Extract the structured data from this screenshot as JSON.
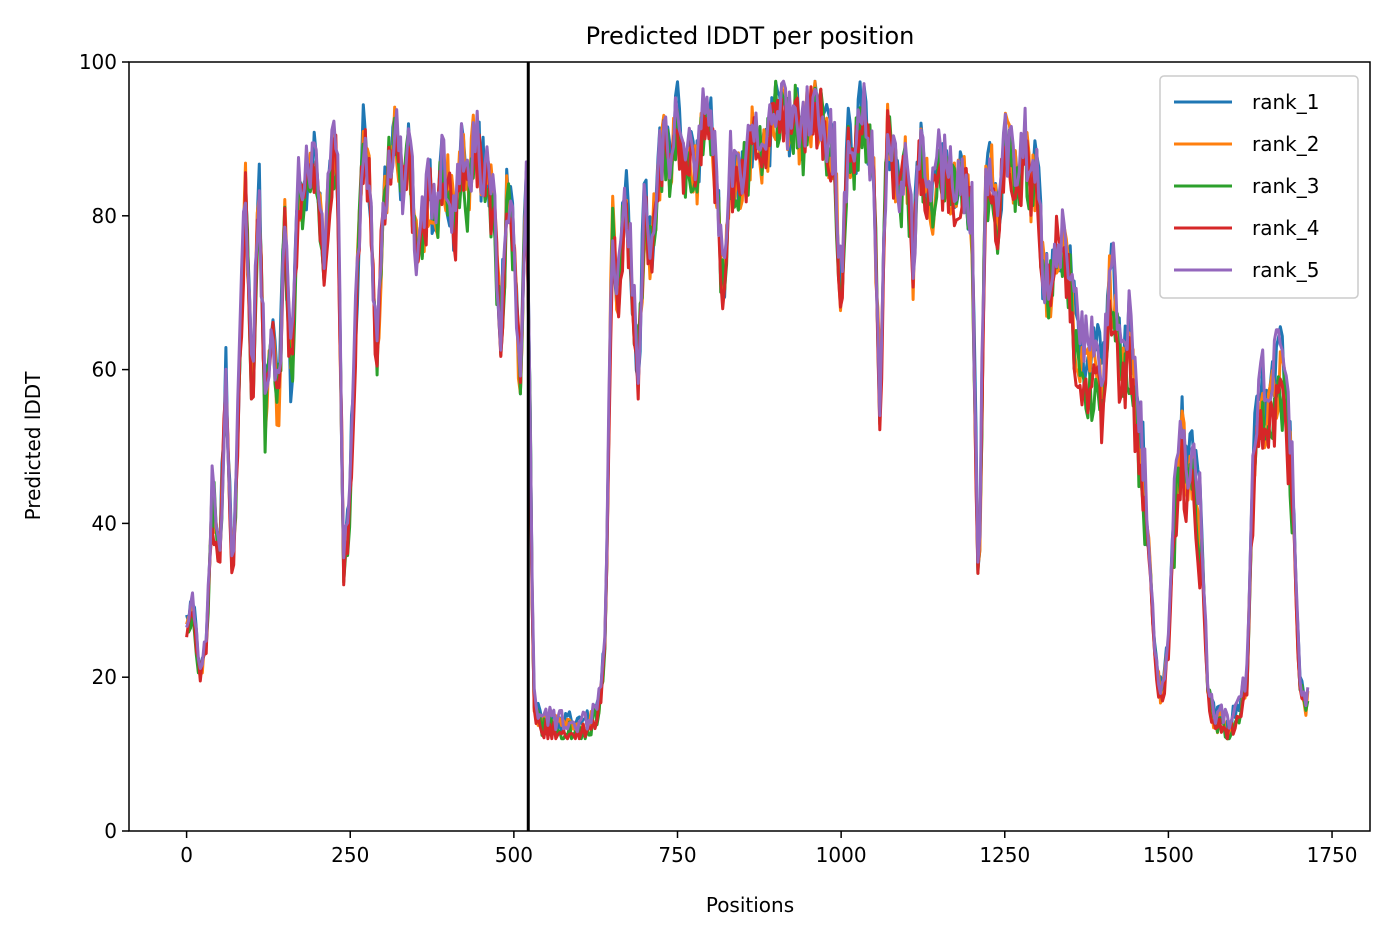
{
  "chart_data": {
    "type": "line",
    "title": "Predicted lDDT per position",
    "xlabel": "Positions",
    "ylabel": "Predicted lDDT",
    "xlim": [
      -88,
      1808
    ],
    "ylim": [
      0,
      100
    ],
    "xticks": [
      0,
      250,
      500,
      750,
      1000,
      1250,
      1500,
      1750
    ],
    "yticks": [
      0,
      20,
      40,
      60,
      80,
      100
    ],
    "grid": false,
    "legend_position": "upper right",
    "vline": {
      "x": 522,
      "color": "#000000"
    },
    "x": [
      0,
      10,
      20,
      30,
      40,
      50,
      60,
      70,
      80,
      90,
      100,
      110,
      120,
      130,
      140,
      150,
      160,
      170,
      180,
      190,
      200,
      210,
      220,
      230,
      240,
      250,
      260,
      270,
      280,
      290,
      300,
      310,
      320,
      330,
      340,
      350,
      360,
      370,
      380,
      390,
      400,
      410,
      420,
      430,
      440,
      450,
      460,
      470,
      480,
      490,
      500,
      510,
      520,
      530,
      540,
      550,
      560,
      570,
      580,
      590,
      600,
      610,
      620,
      630,
      640,
      650,
      660,
      670,
      680,
      690,
      700,
      710,
      720,
      730,
      740,
      750,
      760,
      770,
      780,
      790,
      800,
      810,
      820,
      830,
      840,
      850,
      860,
      870,
      880,
      890,
      900,
      910,
      920,
      930,
      940,
      950,
      960,
      970,
      980,
      990,
      1000,
      1010,
      1020,
      1030,
      1040,
      1050,
      1060,
      1070,
      1080,
      1090,
      1100,
      1110,
      1120,
      1130,
      1140,
      1150,
      1160,
      1170,
      1180,
      1190,
      1200,
      1210,
      1220,
      1230,
      1240,
      1250,
      1260,
      1270,
      1280,
      1290,
      1300,
      1310,
      1320,
      1330,
      1340,
      1350,
      1360,
      1370,
      1380,
      1390,
      1400,
      1410,
      1420,
      1430,
      1440,
      1450,
      1460,
      1470,
      1480,
      1490,
      1500,
      1510,
      1520,
      1530,
      1540,
      1550,
      1560,
      1570,
      1580,
      1590,
      1600,
      1610,
      1620,
      1630,
      1640,
      1650,
      1660,
      1670,
      1680,
      1690,
      1700,
      1710,
      1715
    ],
    "base": [
      27,
      30,
      21,
      25,
      45,
      35,
      60,
      32,
      60,
      84,
      55,
      86,
      55,
      68,
      55,
      80,
      58,
      84,
      83,
      88,
      85,
      75,
      87,
      89,
      35,
      45,
      70,
      90,
      85,
      60,
      82,
      88,
      92,
      84,
      90,
      76,
      78,
      84,
      80,
      86,
      84,
      79,
      90,
      82,
      92,
      86,
      86,
      80,
      64,
      84,
      77,
      58,
      88,
      17,
      15,
      14.5,
      14.5,
      14,
      14,
      14,
      14,
      14,
      15,
      17,
      25,
      80,
      70,
      84,
      72,
      60,
      82,
      75,
      86,
      90,
      87,
      93,
      87,
      88,
      86,
      94,
      92,
      84,
      70,
      88,
      84,
      86,
      89,
      93,
      88,
      90,
      95,
      94,
      92,
      94,
      90,
      94,
      94,
      94,
      90,
      88,
      70,
      90,
      88,
      94,
      92,
      84,
      55,
      92,
      88,
      82,
      88,
      74,
      89,
      85,
      82,
      87,
      86,
      85,
      84,
      84,
      80,
      30,
      84,
      86,
      80,
      90,
      88,
      84,
      90,
      84,
      87,
      70,
      72,
      78,
      76,
      72,
      66,
      62,
      62,
      64,
      58,
      74,
      70,
      62,
      66,
      58,
      50,
      38,
      22,
      18,
      25,
      45,
      55,
      48,
      50,
      40,
      20,
      15,
      15,
      14,
      15,
      17,
      20,
      50,
      60,
      55,
      60,
      62,
      60,
      45,
      20,
      17,
      18
    ],
    "series": [
      {
        "name": "rank_1",
        "color": "#1f77b4"
      },
      {
        "name": "rank_2",
        "color": "#ff7f0e"
      },
      {
        "name": "rank_3",
        "color": "#2ca02c"
      },
      {
        "name": "rank_4",
        "color": "#d62728"
      },
      {
        "name": "rank_5",
        "color": "#9467bd"
      }
    ]
  }
}
